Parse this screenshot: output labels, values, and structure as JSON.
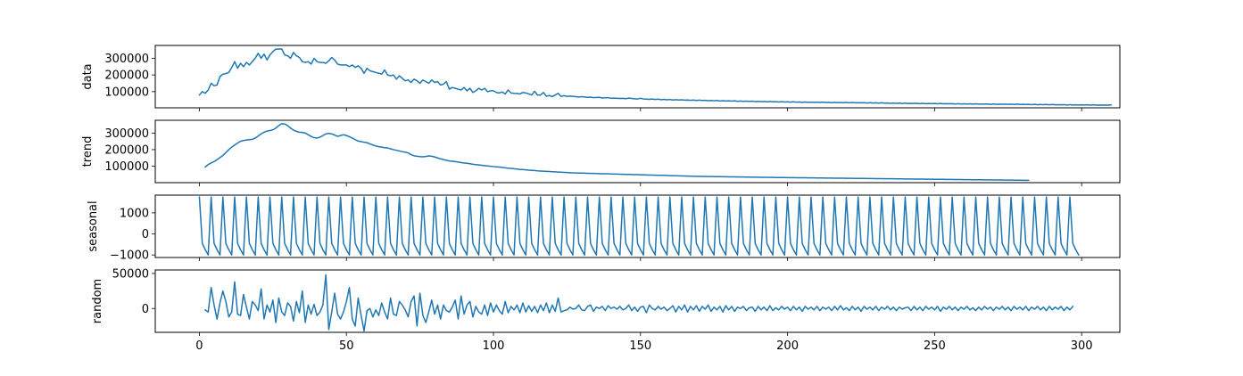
{
  "chart_data": [
    {
      "type": "line",
      "ylabel": "data",
      "xlim": [
        -15,
        313
      ],
      "ylim": [
        3000,
        377000
      ],
      "yticks": [
        100000,
        200000,
        300000
      ],
      "ytick_labels": [
        "100000",
        "200000",
        "300000"
      ],
      "xticks": [
        0,
        50,
        100,
        150,
        200,
        250,
        300
      ],
      "xtick_labels": [],
      "line_color": "#1f77b4",
      "series": [
        {
          "name": "data",
          "x_start": 0,
          "values": [
            80000,
            100000,
            90000,
            110000,
            150000,
            135000,
            140000,
            190000,
            205000,
            208000,
            215000,
            245000,
            280000,
            240000,
            270000,
            250000,
            275000,
            260000,
            280000,
            300000,
            330000,
            300000,
            325000,
            290000,
            320000,
            340000,
            355000,
            355000,
            356000,
            320000,
            315000,
            300000,
            335000,
            315000,
            305000,
            280000,
            275000,
            280000,
            265000,
            300000,
            280000,
            275000,
            275000,
            270000,
            285000,
            305000,
            290000,
            265000,
            260000,
            260000,
            260000,
            250000,
            260000,
            245000,
            255000,
            240000,
            210000,
            240000,
            225000,
            220000,
            215000,
            210000,
            205000,
            230000,
            200000,
            195000,
            200000,
            175000,
            195000,
            180000,
            165000,
            170000,
            155000,
            175000,
            165000,
            150000,
            170000,
            160000,
            150000,
            170000,
            155000,
            160000,
            140000,
            145000,
            160000,
            115000,
            125000,
            120000,
            115000,
            110000,
            125000,
            105000,
            120000,
            95000,
            105000,
            120000,
            110000,
            120000,
            100000,
            105000,
            105000,
            95000,
            92000,
            98000,
            86000,
            110000,
            92000,
            90000,
            89000,
            86000,
            95000,
            92000,
            86000,
            80000,
            102000,
            79000,
            80000,
            95000,
            72000,
            77000,
            70000,
            80000,
            90000,
            71000,
            76000,
            72000,
            73000,
            72000,
            70000,
            68000,
            70000,
            68000,
            66000,
            67000,
            64000,
            65000,
            66000,
            62000,
            63000,
            64000,
            60000,
            61000,
            60000,
            59000,
            60000,
            58000,
            61000,
            59000,
            57000,
            56000,
            60000,
            56000,
            55000,
            54000,
            56000,
            53000,
            55000,
            52000,
            54000,
            51000,
            53000,
            50000,
            52000,
            50000,
            51000,
            49000,
            50000,
            48000,
            50000,
            47000,
            49000,
            47000,
            48000,
            46000,
            47000,
            45000,
            47000,
            44000,
            46000,
            44000,
            45000,
            43000,
            45000,
            42000,
            44000,
            42000,
            43000,
            41000,
            43000,
            40000,
            42000,
            40000,
            41000,
            39000,
            41000,
            39000,
            40000,
            38000,
            40000,
            38000,
            39000,
            37000,
            39000,
            37000,
            38000,
            36000,
            38000,
            36000,
            37000,
            36000,
            37000,
            35000,
            37000,
            35000,
            36000,
            34000,
            36000,
            34000,
            35000,
            34000,
            35000,
            33000,
            35000,
            33000,
            34000,
            33000,
            34000,
            32000,
            34000,
            32000,
            33000,
            31000,
            33000,
            31000,
            32000,
            30000,
            32000,
            30000,
            31000,
            29000,
            31000,
            29000,
            30000,
            29000,
            30000,
            28000,
            30000,
            28000,
            29000,
            28000,
            29000,
            27000,
            29000,
            27000,
            28000,
            27000,
            28000,
            26000,
            28000,
            26000,
            27000,
            26000,
            27000,
            25000,
            27000,
            25000,
            26000,
            25000,
            26000,
            24000,
            26000,
            24000,
            25000,
            24000,
            25000,
            24000,
            25000,
            23000,
            25000,
            23000,
            24000,
            23000,
            24000,
            22000,
            24000,
            22000,
            23000,
            22000,
            23000,
            21000,
            23000,
            21000,
            22000,
            21000,
            22000,
            20000,
            22000,
            20000,
            21000,
            20000,
            21000,
            20000,
            21000,
            19000,
            21000,
            19000,
            20000,
            19000,
            20000,
            19000,
            20000
          ]
        }
      ]
    },
    {
      "type": "line",
      "ylabel": "trend",
      "xlim": [
        -15,
        313
      ],
      "ylim": [
        1000,
        377000
      ],
      "yticks": [
        100000,
        200000,
        300000
      ],
      "ytick_labels": [
        "100000",
        "200000",
        "300000"
      ],
      "xticks": [
        0,
        50,
        100,
        150,
        200,
        250,
        300
      ],
      "xtick_labels": [],
      "line_color": "#1f77b4",
      "series": [
        {
          "name": "trend",
          "x_start": 2,
          "values": [
            95000,
            110000,
            120000,
            128000,
            140000,
            152000,
            165000,
            182000,
            200000,
            215000,
            228000,
            240000,
            250000,
            255000,
            258000,
            260000,
            262000,
            270000,
            282000,
            295000,
            305000,
            312000,
            315000,
            320000,
            330000,
            345000,
            356000,
            355000,
            345000,
            330000,
            318000,
            310000,
            305000,
            304000,
            300000,
            290000,
            280000,
            272000,
            270000,
            275000,
            285000,
            295000,
            298000,
            295000,
            288000,
            280000,
            285000,
            290000,
            285000,
            278000,
            270000,
            260000,
            252000,
            248000,
            245000,
            242000,
            235000,
            228000,
            222000,
            218000,
            215000,
            212000,
            210000,
            205000,
            200000,
            196000,
            192000,
            188000,
            185000,
            180000,
            170000,
            163000,
            160000,
            158000,
            157000,
            159000,
            162000,
            160000,
            156000,
            150000,
            145000,
            140000,
            136000,
            132000,
            130000,
            128000,
            125000,
            122000,
            120000,
            118000,
            115000,
            112000,
            110000,
            108000,
            106000,
            104000,
            102000,
            100000,
            98000,
            96000,
            95000,
            93000,
            90000,
            88000,
            87000,
            85000,
            83000,
            81000,
            80000,
            78000,
            76000,
            75000,
            74000,
            72000,
            71000,
            70000,
            69000,
            68000,
            67000,
            66000,
            65000,
            64000,
            63000,
            62000,
            61000,
            60000,
            59500,
            59000,
            58500,
            58000,
            57500,
            57000,
            56500,
            56000,
            55500,
            55000,
            54500,
            54000,
            53500,
            53000,
            52500,
            52000,
            51500,
            51000,
            50500,
            50000,
            49500,
            49000,
            48500,
            48000,
            47500,
            47000,
            46500,
            46000,
            45500,
            45000,
            44500,
            44000,
            43500,
            43000,
            42500,
            42000,
            41500,
            41000,
            40500,
            40000,
            39500,
            39000,
            38700,
            38500,
            38200,
            38000,
            37700,
            37500,
            37200,
            37000,
            36700,
            36500,
            36200,
            36000,
            35700,
            35500,
            35200,
            35000,
            34700,
            34500,
            34200,
            34000,
            33700,
            33500,
            33200,
            33000,
            32700,
            32500,
            32200,
            32000,
            31800,
            31600,
            31400,
            31200,
            31000,
            30800,
            30600,
            30400,
            30200,
            30000,
            29800,
            29600,
            29400,
            29200,
            29000,
            28800,
            28600,
            28400,
            28200,
            28000,
            27800,
            27600,
            27400,
            27200,
            27000,
            26800,
            26600,
            26400,
            26200,
            26000,
            25800,
            25600,
            25400,
            25200,
            25000,
            24800,
            24600,
            24400,
            24200,
            24000,
            23800,
            23600,
            23400,
            23200,
            23000,
            22800,
            22600,
            22400,
            22200,
            22000,
            21800,
            21600,
            21400,
            21200,
            21000,
            20800,
            20600,
            20400,
            20200,
            20000,
            19800,
            19600,
            19400,
            19200,
            19000,
            18800,
            18600,
            18400,
            18200,
            18000,
            17800,
            17600,
            17400,
            17200,
            17000,
            16800,
            16600,
            16400,
            16200,
            16000,
            15800,
            15600,
            15400,
            15200,
            15000
          ]
        }
      ]
    },
    {
      "type": "line",
      "ylabel": "seasonal",
      "xlim": [
        -15,
        313
      ],
      "ylim": [
        -1120,
        1840
      ],
      "yticks": [
        -1000,
        0,
        1000
      ],
      "ytick_labels": [
        "−1000",
        "0",
        "1000"
      ],
      "xticks": [
        0,
        50,
        100,
        150,
        200,
        250,
        300
      ],
      "xtick_labels": [],
      "line_color": "#1f77b4",
      "period": 4,
      "pattern": [
        1750,
        -450,
        -750,
        -1000
      ],
      "n_points": 300
    },
    {
      "type": "line",
      "ylabel": "random",
      "xlim": [
        -15,
        313
      ],
      "ylim": [
        -34000,
        55000
      ],
      "yticks": [
        0,
        50000
      ],
      "ytick_labels": [
        "0",
        "50000"
      ],
      "xticks": [
        0,
        50,
        100,
        150,
        200,
        250,
        300
      ],
      "xtick_labels": [
        "0",
        "50",
        "100",
        "150",
        "200",
        "250",
        "300"
      ],
      "line_color": "#1f77b4",
      "series": [
        {
          "name": "random",
          "x_start": 2,
          "values": [
            -2000,
            -5000,
            30000,
            5000,
            -15000,
            8000,
            25000,
            10000,
            -12000,
            -5000,
            38000,
            -8000,
            -10000,
            20000,
            2000,
            -15000,
            10000,
            5000,
            -3000,
            28000,
            -15000,
            5000,
            -5000,
            12000,
            -20000,
            15000,
            -5000,
            -10000,
            8000,
            3000,
            -18000,
            10000,
            -6000,
            25000,
            -20000,
            5000,
            -8000,
            6000,
            -10000,
            -5000,
            5000,
            48000,
            -30000,
            -5000,
            22000,
            -8000,
            -15000,
            -5000,
            10000,
            30000,
            -15000,
            -25000,
            15000,
            -10000,
            -32000,
            -3000,
            0,
            -12000,
            -2000,
            -10000,
            8000,
            -5000,
            -15000,
            15000,
            -8000,
            -10000,
            10000,
            5000,
            -2000,
            -12000,
            10000,
            18000,
            -25000,
            22000,
            -10000,
            -20000,
            -5000,
            12000,
            -8000,
            5000,
            -15000,
            5000,
            -3000,
            -5000,
            2000,
            12000,
            -15000,
            18000,
            -8000,
            5000,
            10000,
            -12000,
            3000,
            -5000,
            -8000,
            5000,
            -10000,
            8000,
            -5000,
            5000,
            -3000,
            -8000,
            10000,
            -6000,
            3000,
            -2000,
            5000,
            -6000,
            8000,
            -5000,
            4000,
            -4000,
            3000,
            -6000,
            5000,
            -3000,
            8000,
            -6000,
            5000,
            -4000,
            15000,
            -5000,
            -3000,
            -2000,
            2000,
            -1000,
            0,
            5000,
            -2000,
            -3000,
            3000,
            5000,
            -4000,
            2000,
            0,
            3000,
            -3000,
            4000,
            0,
            2000,
            -1000,
            3000,
            -2000,
            0,
            5000,
            -3000,
            2000,
            -4000,
            2000,
            3000,
            -6000,
            5000,
            0,
            -2000,
            3000,
            -1000,
            2000,
            -3000,
            0,
            4000,
            -5000,
            3000,
            -2000,
            5000,
            -5000,
            3000,
            -2000,
            4000,
            -4000,
            3000,
            -1000,
            5000,
            -4000,
            2000,
            -2000,
            3000,
            -5000,
            4000,
            -2000,
            3000,
            -4000,
            2000,
            0,
            3000,
            -3000,
            1000,
            2000,
            -4000,
            3000,
            -2000,
            2000,
            -3000,
            4000,
            -3000,
            1000,
            -2000,
            3000,
            -1000,
            2000,
            -3000,
            3000,
            -2000,
            2000,
            -4000,
            3000,
            -1000,
            2000,
            -2000,
            3000,
            -3000,
            2000,
            -1000,
            2000,
            -3000,
            3000,
            -2000,
            4000,
            -2000,
            1000,
            -3000,
            3000,
            -2000,
            2000,
            -4000,
            3000,
            -1000,
            2000,
            -2000,
            3000,
            -3000,
            2000,
            -1000,
            3000,
            -2000,
            2000,
            -3000,
            2000,
            -1000,
            1000,
            2000,
            -3000,
            3000,
            -2000,
            2000,
            -3000,
            3000,
            -1000,
            2000,
            -2000,
            3000,
            -4000,
            2000,
            -1000,
            3000,
            -2000,
            2000,
            -3000,
            2000,
            -1000,
            3000,
            -2000,
            1000,
            -3000,
            2000,
            -2000,
            3000,
            -1000,
            2000,
            -3000,
            2000,
            -1000,
            3000,
            -2000,
            2000,
            -3000,
            3000,
            -1000,
            2000,
            -2000,
            3000,
            -3000,
            2000,
            -1000,
            3000,
            -2000,
            2000,
            -3000,
            3000,
            -2000,
            2000,
            -1000,
            3000,
            -3000,
            2000,
            -2000,
            3000
          ]
        }
      ]
    }
  ]
}
